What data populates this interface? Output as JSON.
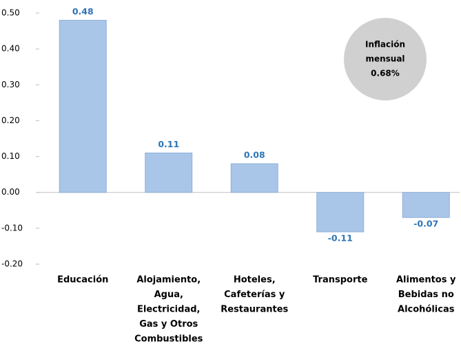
{
  "chart_data": {
    "type": "bar",
    "categories": [
      [
        "Educación"
      ],
      [
        "Alojamiento,",
        "Agua,",
        "Electricidad,",
        "Gas y Otros",
        "Combustibles"
      ],
      [
        "Hoteles,",
        "Cafeterías y",
        "Restaurantes"
      ],
      [
        "Transporte"
      ],
      [
        "Alimentos y",
        "Bebidas no",
        "Alcohólicas"
      ]
    ],
    "values": [
      0.48,
      0.11,
      0.08,
      -0.11,
      -0.07
    ],
    "color": "#a9c5e8",
    "ylim": [
      -0.2,
      0.5
    ],
    "yticks": [
      {
        "value": 0.5,
        "label": "0.50"
      },
      {
        "value": 0.4,
        "label": "0.40"
      },
      {
        "value": 0.3,
        "label": "0.30"
      },
      {
        "value": 0.2,
        "label": "0.20"
      },
      {
        "value": 0.1,
        "label": "0.10"
      },
      {
        "value": 0,
        "label": "0.00"
      },
      {
        "value": -0.1,
        "label": "-0.10"
      },
      {
        "value": -0.2,
        "label": "-0.20"
      }
    ],
    "annotation": [
      "Inflación",
      "mensual",
      "0.68%"
    ]
  }
}
